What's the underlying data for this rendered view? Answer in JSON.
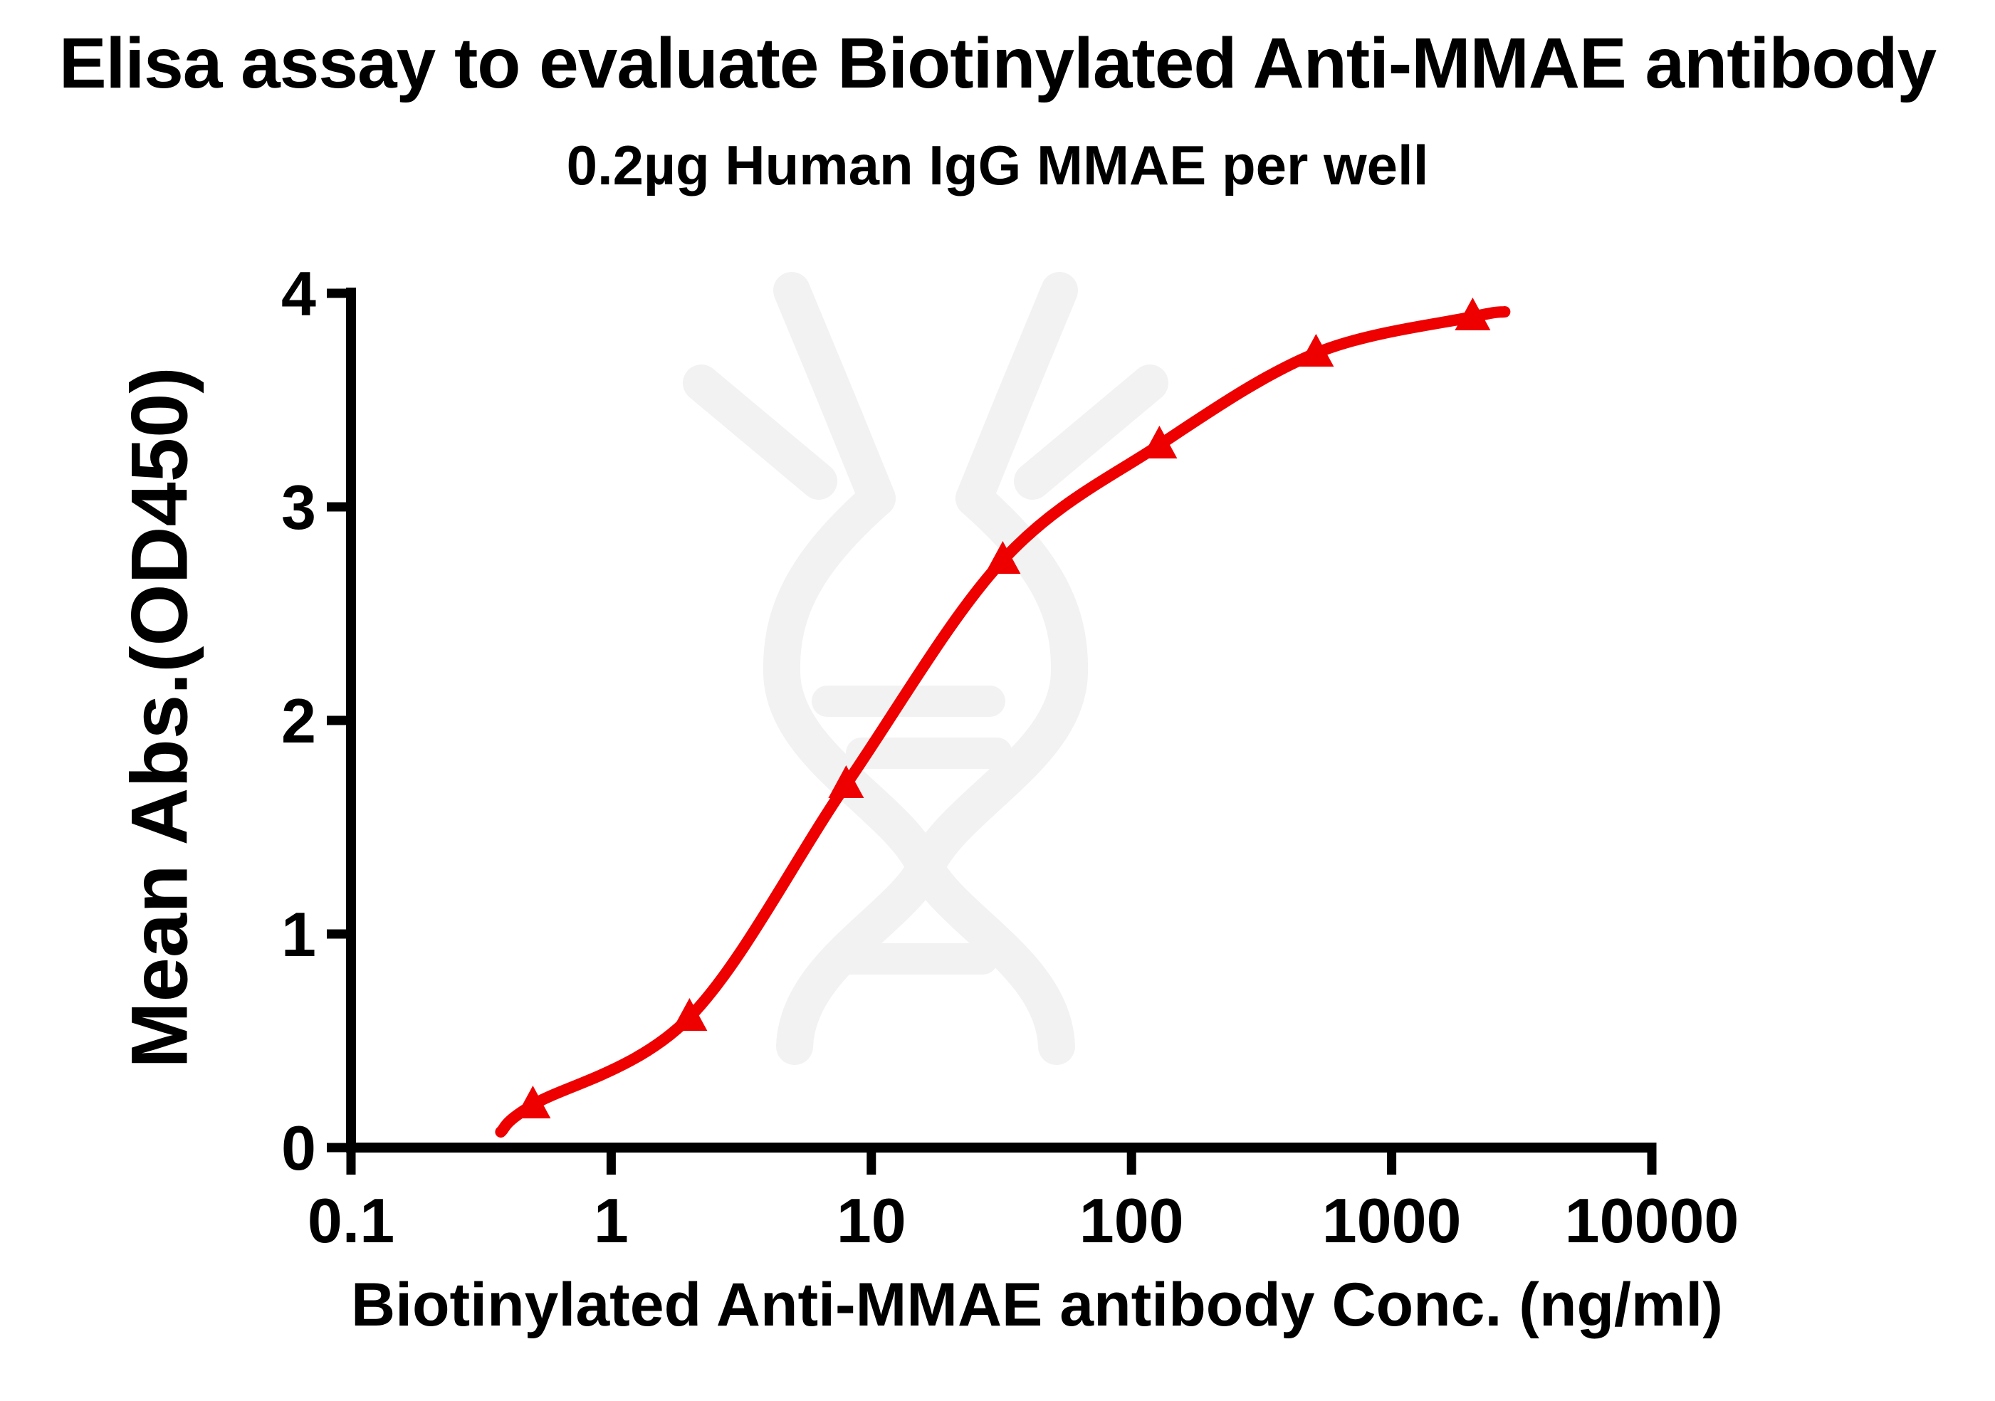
{
  "chart_data": {
    "type": "scatter",
    "title": "Elisa assay to evaluate Biotinylated Anti-MMAE antibody",
    "subtitle": "0.2µg Human IgG MMAE per well",
    "xlabel": "Biotinylated Anti-MMAE antibody Conc. (ng/ml)",
    "ylabel": "Mean Abs.(OD450)",
    "x_scale": "log",
    "xlim": [
      0.1,
      10000
    ],
    "ylim": [
      0,
      4
    ],
    "x_ticks": [
      0.1,
      1,
      10,
      100,
      1000,
      10000
    ],
    "x_tick_labels": [
      "0.1",
      "1",
      "10",
      "100",
      "1000",
      "10000"
    ],
    "y_ticks": [
      0,
      1,
      2,
      3,
      4
    ],
    "y_tick_labels": [
      "0",
      "1",
      "2",
      "3",
      "4"
    ],
    "grid": false,
    "legend": "none",
    "series": [
      {
        "name": "Biotinylated Anti-MMAE antibody",
        "marker": "triangle-up",
        "line": "4PL sigmoid fit curve through points",
        "x": [
          0.5,
          2,
          8,
          32,
          128,
          512,
          2048
        ],
        "y": [
          0.2,
          0.61,
          1.7,
          2.75,
          3.29,
          3.72,
          3.89
        ]
      }
    ],
    "colors": {
      "curve": "#EE0000",
      "marker": "#EE0000",
      "axis": "#000000",
      "text": "#000000",
      "watermark": "#F2F2F2",
      "background": "#FFFFFF"
    }
  }
}
